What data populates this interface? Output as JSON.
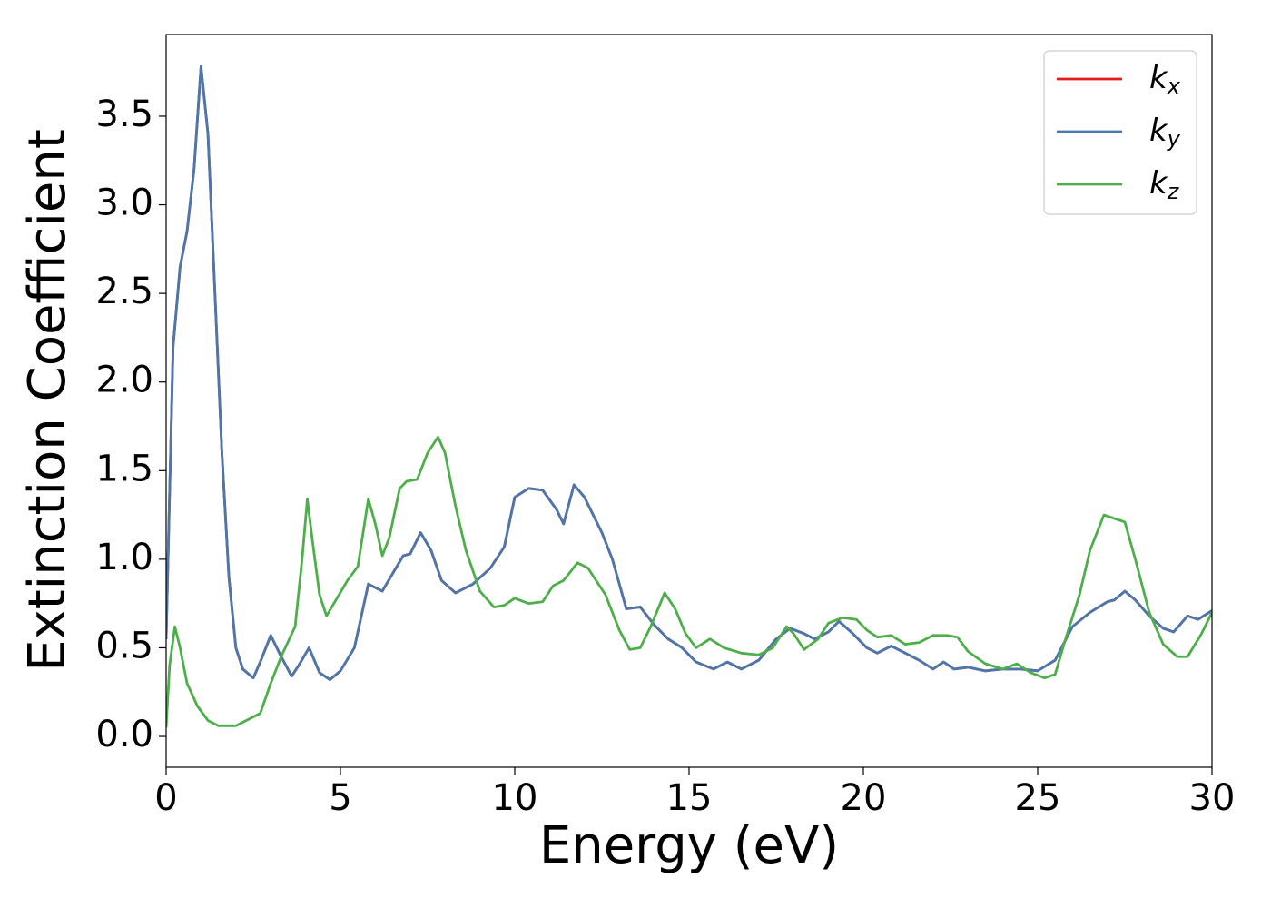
{
  "chart_data": {
    "type": "line",
    "xlabel": "Energy (eV)",
    "ylabel": "Extinction Coefficient",
    "xlim": [
      0,
      30
    ],
    "ylim": [
      -0.174,
      3.961
    ],
    "xticks": [
      0,
      5,
      10,
      15,
      20,
      25,
      30
    ],
    "yticks": [
      {
        "value": 0,
        "label": "0.0"
      },
      {
        "value": 0.5,
        "label": "0.5"
      },
      {
        "value": 1,
        "label": "1.0"
      },
      {
        "value": 1.5,
        "label": "1.5"
      },
      {
        "value": 2,
        "label": "2.0"
      },
      {
        "value": 2.5,
        "label": "2.5"
      },
      {
        "value": 3,
        "label": "3.0"
      },
      {
        "value": 3.5,
        "label": "3.5"
      }
    ],
    "grid": false,
    "legend": "upper right",
    "series": [
      {
        "name": "kx",
        "color": "#e41a1c",
        "x": [
          0,
          0.2,
          0.4,
          0.6,
          0.8,
          1.0,
          1.2,
          1.4,
          1.6,
          1.8,
          2.0,
          2.2,
          2.5,
          2.7,
          3.0,
          3.3,
          3.6,
          3.8,
          4.1,
          4.4,
          4.7,
          5.0,
          5.4,
          5.8,
          6.2,
          6.5,
          6.8,
          7.0,
          7.3,
          7.6,
          7.9,
          8.3,
          8.8,
          9.3,
          9.7,
          10.0,
          10.4,
          10.8,
          11.2,
          11.4,
          11.7,
          12.0,
          12.5,
          12.8,
          13.2,
          13.6,
          14.0,
          14.4,
          14.8,
          15.2,
          15.7,
          16.1,
          16.5,
          17.0,
          17.5,
          17.9,
          18.3,
          18.6,
          19.0,
          19.3,
          19.7,
          20.1,
          20.4,
          20.8,
          21.2,
          21.6,
          22.0,
          22.3,
          22.6,
          23.0,
          23.5,
          24.0,
          24.5,
          25.0,
          25.5,
          26.0,
          26.5,
          27.0,
          27.2,
          27.5,
          27.8,
          28.2,
          28.6,
          28.9,
          29.3,
          29.6,
          30.0
        ],
        "values": [
          0.55,
          2.2,
          2.65,
          2.85,
          3.2,
          3.78,
          3.4,
          2.5,
          1.6,
          0.9,
          0.5,
          0.38,
          0.33,
          0.42,
          0.57,
          0.45,
          0.34,
          0.4,
          0.5,
          0.36,
          0.32,
          0.37,
          0.5,
          0.86,
          0.82,
          0.92,
          1.02,
          1.03,
          1.15,
          1.05,
          0.88,
          0.81,
          0.86,
          0.95,
          1.07,
          1.35,
          1.4,
          1.39,
          1.28,
          1.2,
          1.42,
          1.35,
          1.15,
          1.0,
          0.72,
          0.73,
          0.63,
          0.55,
          0.5,
          0.42,
          0.38,
          0.42,
          0.38,
          0.43,
          0.55,
          0.61,
          0.58,
          0.55,
          0.59,
          0.65,
          0.58,
          0.5,
          0.47,
          0.51,
          0.47,
          0.43,
          0.38,
          0.42,
          0.38,
          0.39,
          0.37,
          0.38,
          0.38,
          0.37,
          0.43,
          0.62,
          0.7,
          0.76,
          0.77,
          0.82,
          0.77,
          0.68,
          0.61,
          0.59,
          0.68,
          0.66,
          0.71
        ]
      },
      {
        "name": "ky",
        "color": "#4a78ad",
        "x": [
          0,
          0.2,
          0.4,
          0.6,
          0.8,
          1.0,
          1.2,
          1.4,
          1.6,
          1.8,
          2.0,
          2.2,
          2.5,
          2.7,
          3.0,
          3.3,
          3.6,
          3.8,
          4.1,
          4.4,
          4.7,
          5.0,
          5.4,
          5.8,
          6.2,
          6.5,
          6.8,
          7.0,
          7.3,
          7.6,
          7.9,
          8.3,
          8.8,
          9.3,
          9.7,
          10.0,
          10.4,
          10.8,
          11.2,
          11.4,
          11.7,
          12.0,
          12.5,
          12.8,
          13.2,
          13.6,
          14.0,
          14.4,
          14.8,
          15.2,
          15.7,
          16.1,
          16.5,
          17.0,
          17.5,
          17.9,
          18.3,
          18.6,
          19.0,
          19.3,
          19.7,
          20.1,
          20.4,
          20.8,
          21.2,
          21.6,
          22.0,
          22.3,
          22.6,
          23.0,
          23.5,
          24.0,
          24.5,
          25.0,
          25.5,
          26.0,
          26.5,
          27.0,
          27.2,
          27.5,
          27.8,
          28.2,
          28.6,
          28.9,
          29.3,
          29.6,
          30.0
        ],
        "values": [
          0.55,
          2.2,
          2.65,
          2.85,
          3.2,
          3.78,
          3.4,
          2.5,
          1.6,
          0.9,
          0.5,
          0.38,
          0.33,
          0.42,
          0.57,
          0.45,
          0.34,
          0.4,
          0.5,
          0.36,
          0.32,
          0.37,
          0.5,
          0.86,
          0.82,
          0.92,
          1.02,
          1.03,
          1.15,
          1.05,
          0.88,
          0.81,
          0.86,
          0.95,
          1.07,
          1.35,
          1.4,
          1.39,
          1.28,
          1.2,
          1.42,
          1.35,
          1.15,
          1.0,
          0.72,
          0.73,
          0.63,
          0.55,
          0.5,
          0.42,
          0.38,
          0.42,
          0.38,
          0.43,
          0.55,
          0.61,
          0.58,
          0.55,
          0.59,
          0.65,
          0.58,
          0.5,
          0.47,
          0.51,
          0.47,
          0.43,
          0.38,
          0.42,
          0.38,
          0.39,
          0.37,
          0.38,
          0.38,
          0.37,
          0.43,
          0.62,
          0.7,
          0.76,
          0.77,
          0.82,
          0.77,
          0.68,
          0.61,
          0.59,
          0.68,
          0.66,
          0.71
        ]
      },
      {
        "name": "kz",
        "color": "#4daf4a",
        "x": [
          0,
          0.1,
          0.25,
          0.4,
          0.6,
          0.9,
          1.2,
          1.5,
          2.0,
          2.4,
          2.7,
          3.0,
          3.3,
          3.7,
          3.9,
          4.05,
          4.2,
          4.4,
          4.6,
          4.9,
          5.2,
          5.5,
          5.8,
          6.0,
          6.2,
          6.4,
          6.7,
          6.9,
          7.2,
          7.5,
          7.8,
          8.0,
          8.3,
          8.6,
          9.0,
          9.4,
          9.7,
          10.0,
          10.4,
          10.8,
          11.1,
          11.4,
          11.8,
          12.1,
          12.6,
          13.0,
          13.3,
          13.6,
          13.9,
          14.3,
          14.6,
          14.9,
          15.2,
          15.6,
          16.0,
          16.5,
          17.0,
          17.4,
          17.8,
          18.0,
          18.3,
          18.7,
          19.0,
          19.4,
          19.8,
          20.1,
          20.4,
          20.8,
          21.2,
          21.6,
          22.0,
          22.4,
          22.7,
          23.0,
          23.5,
          24.0,
          24.4,
          24.8,
          25.2,
          25.5,
          25.8,
          26.2,
          26.5,
          26.9,
          27.2,
          27.5,
          27.8,
          28.2,
          28.6,
          29.0,
          29.3,
          29.7,
          30.0
        ],
        "values": [
          0.05,
          0.4,
          0.62,
          0.5,
          0.3,
          0.17,
          0.09,
          0.06,
          0.06,
          0.1,
          0.13,
          0.3,
          0.45,
          0.62,
          1.0,
          1.34,
          1.1,
          0.8,
          0.68,
          0.78,
          0.88,
          0.96,
          1.34,
          1.2,
          1.02,
          1.12,
          1.4,
          1.44,
          1.45,
          1.6,
          1.69,
          1.6,
          1.3,
          1.05,
          0.82,
          0.73,
          0.74,
          0.78,
          0.75,
          0.76,
          0.85,
          0.88,
          0.98,
          0.95,
          0.8,
          0.6,
          0.49,
          0.5,
          0.62,
          0.81,
          0.72,
          0.58,
          0.5,
          0.55,
          0.5,
          0.47,
          0.46,
          0.5,
          0.62,
          0.58,
          0.49,
          0.55,
          0.64,
          0.67,
          0.66,
          0.6,
          0.56,
          0.57,
          0.52,
          0.53,
          0.57,
          0.57,
          0.56,
          0.48,
          0.41,
          0.38,
          0.41,
          0.36,
          0.33,
          0.35,
          0.55,
          0.8,
          1.05,
          1.25,
          1.23,
          1.21,
          1.0,
          0.7,
          0.52,
          0.45,
          0.45,
          0.58,
          0.7
        ]
      }
    ]
  }
}
